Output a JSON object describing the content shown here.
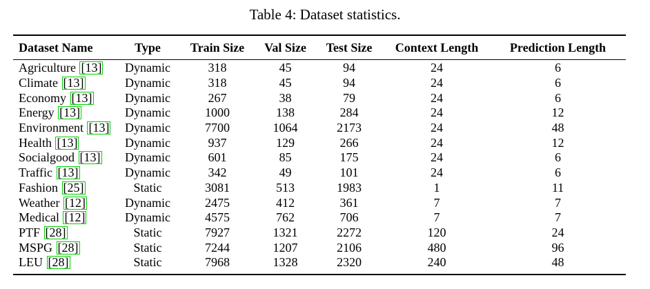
{
  "caption": "Table 4: Dataset statistics.",
  "columns": [
    "Dataset Name",
    "Type",
    "Train Size",
    "Val Size",
    "Test Size",
    "Context Length",
    "Prediction Length"
  ],
  "rows": [
    {
      "name": "Agriculture",
      "cite": "[13]",
      "type": "Dynamic",
      "train": "318",
      "val": "45",
      "test": "94",
      "context": "24",
      "prediction": "6"
    },
    {
      "name": "Climate",
      "cite": "[13]",
      "type": "Dynamic",
      "train": "318",
      "val": "45",
      "test": "94",
      "context": "24",
      "prediction": "6"
    },
    {
      "name": "Economy",
      "cite": "[13]",
      "type": "Dynamic",
      "train": "267",
      "val": "38",
      "test": "79",
      "context": "24",
      "prediction": "6"
    },
    {
      "name": "Energy",
      "cite": "[13]",
      "type": "Dynamic",
      "train": "1000",
      "val": "138",
      "test": "284",
      "context": "24",
      "prediction": "12"
    },
    {
      "name": "Environment",
      "cite": "[13]",
      "type": "Dynamic",
      "train": "7700",
      "val": "1064",
      "test": "2173",
      "context": "24",
      "prediction": "48"
    },
    {
      "name": "Health",
      "cite": "[13]",
      "type": "Dynamic",
      "train": "937",
      "val": "129",
      "test": "266",
      "context": "24",
      "prediction": "12"
    },
    {
      "name": "Socialgood",
      "cite": "[13]",
      "type": "Dynamic",
      "train": "601",
      "val": "85",
      "test": "175",
      "context": "24",
      "prediction": "6"
    },
    {
      "name": "Traffic",
      "cite": "[13]",
      "type": "Dynamic",
      "train": "342",
      "val": "49",
      "test": "101",
      "context": "24",
      "prediction": "6"
    },
    {
      "name": "Fashion",
      "cite": "[25]",
      "type": "Static",
      "train": "3081",
      "val": "513",
      "test": "1983",
      "context": "1",
      "prediction": "11"
    },
    {
      "name": "Weather",
      "cite": "[12]",
      "type": "Dynamic",
      "train": "2475",
      "val": "412",
      "test": "361",
      "context": "7",
      "prediction": "7"
    },
    {
      "name": "Medical",
      "cite": "[12]",
      "type": "Dynamic",
      "train": "4575",
      "val": "762",
      "test": "706",
      "context": "7",
      "prediction": "7"
    },
    {
      "name": "PTF",
      "cite": "[28]",
      "type": "Static",
      "train": "7927",
      "val": "1321",
      "test": "2272",
      "context": "120",
      "prediction": "24"
    },
    {
      "name": "MSPG",
      "cite": "[28]",
      "type": "Static",
      "train": "7244",
      "val": "1207",
      "test": "2106",
      "context": "480",
      "prediction": "96"
    },
    {
      "name": "LEU",
      "cite": "[28]",
      "type": "Static",
      "train": "7968",
      "val": "1328",
      "test": "2320",
      "context": "240",
      "prediction": "48"
    }
  ],
  "colors": {
    "citation_box": "#00d000",
    "text": "#000000",
    "background": "#ffffff"
  }
}
